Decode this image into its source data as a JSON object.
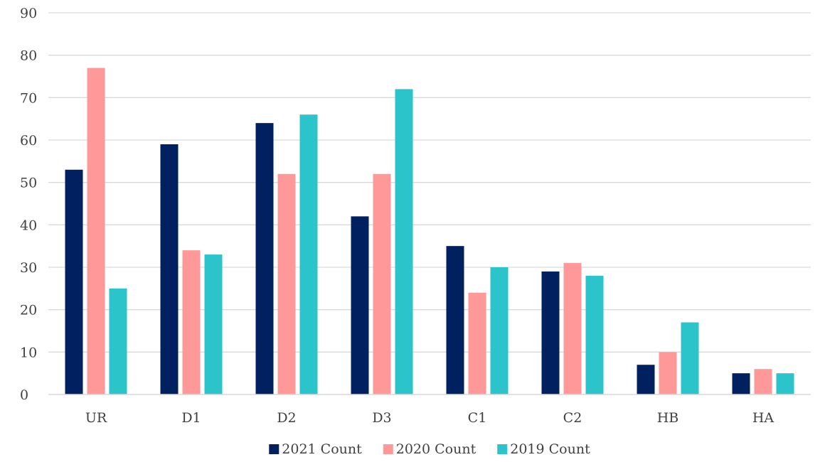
{
  "chart_data": {
    "type": "bar",
    "title": "",
    "xlabel": "",
    "ylabel": "",
    "categories": [
      "UR",
      "D1",
      "D2",
      "D3",
      "C1",
      "C2",
      "HB",
      "HA"
    ],
    "series": [
      {
        "name": "2021 Count",
        "color": "#002060",
        "values": [
          53,
          59,
          64,
          42,
          35,
          29,
          7,
          5
        ]
      },
      {
        "name": "2020 Count",
        "color": "#ff9999",
        "values": [
          77,
          34,
          52,
          52,
          24,
          31,
          10,
          6
        ]
      },
      {
        "name": "2019 Count",
        "color": "#2bc4cb",
        "values": [
          25,
          33,
          66,
          72,
          30,
          28,
          17,
          5
        ]
      }
    ],
    "ylim": [
      0,
      90
    ],
    "yticks": [
      0,
      10,
      20,
      30,
      40,
      50,
      60,
      70,
      80,
      90
    ],
    "grid": true,
    "legend_position": "bottom"
  }
}
